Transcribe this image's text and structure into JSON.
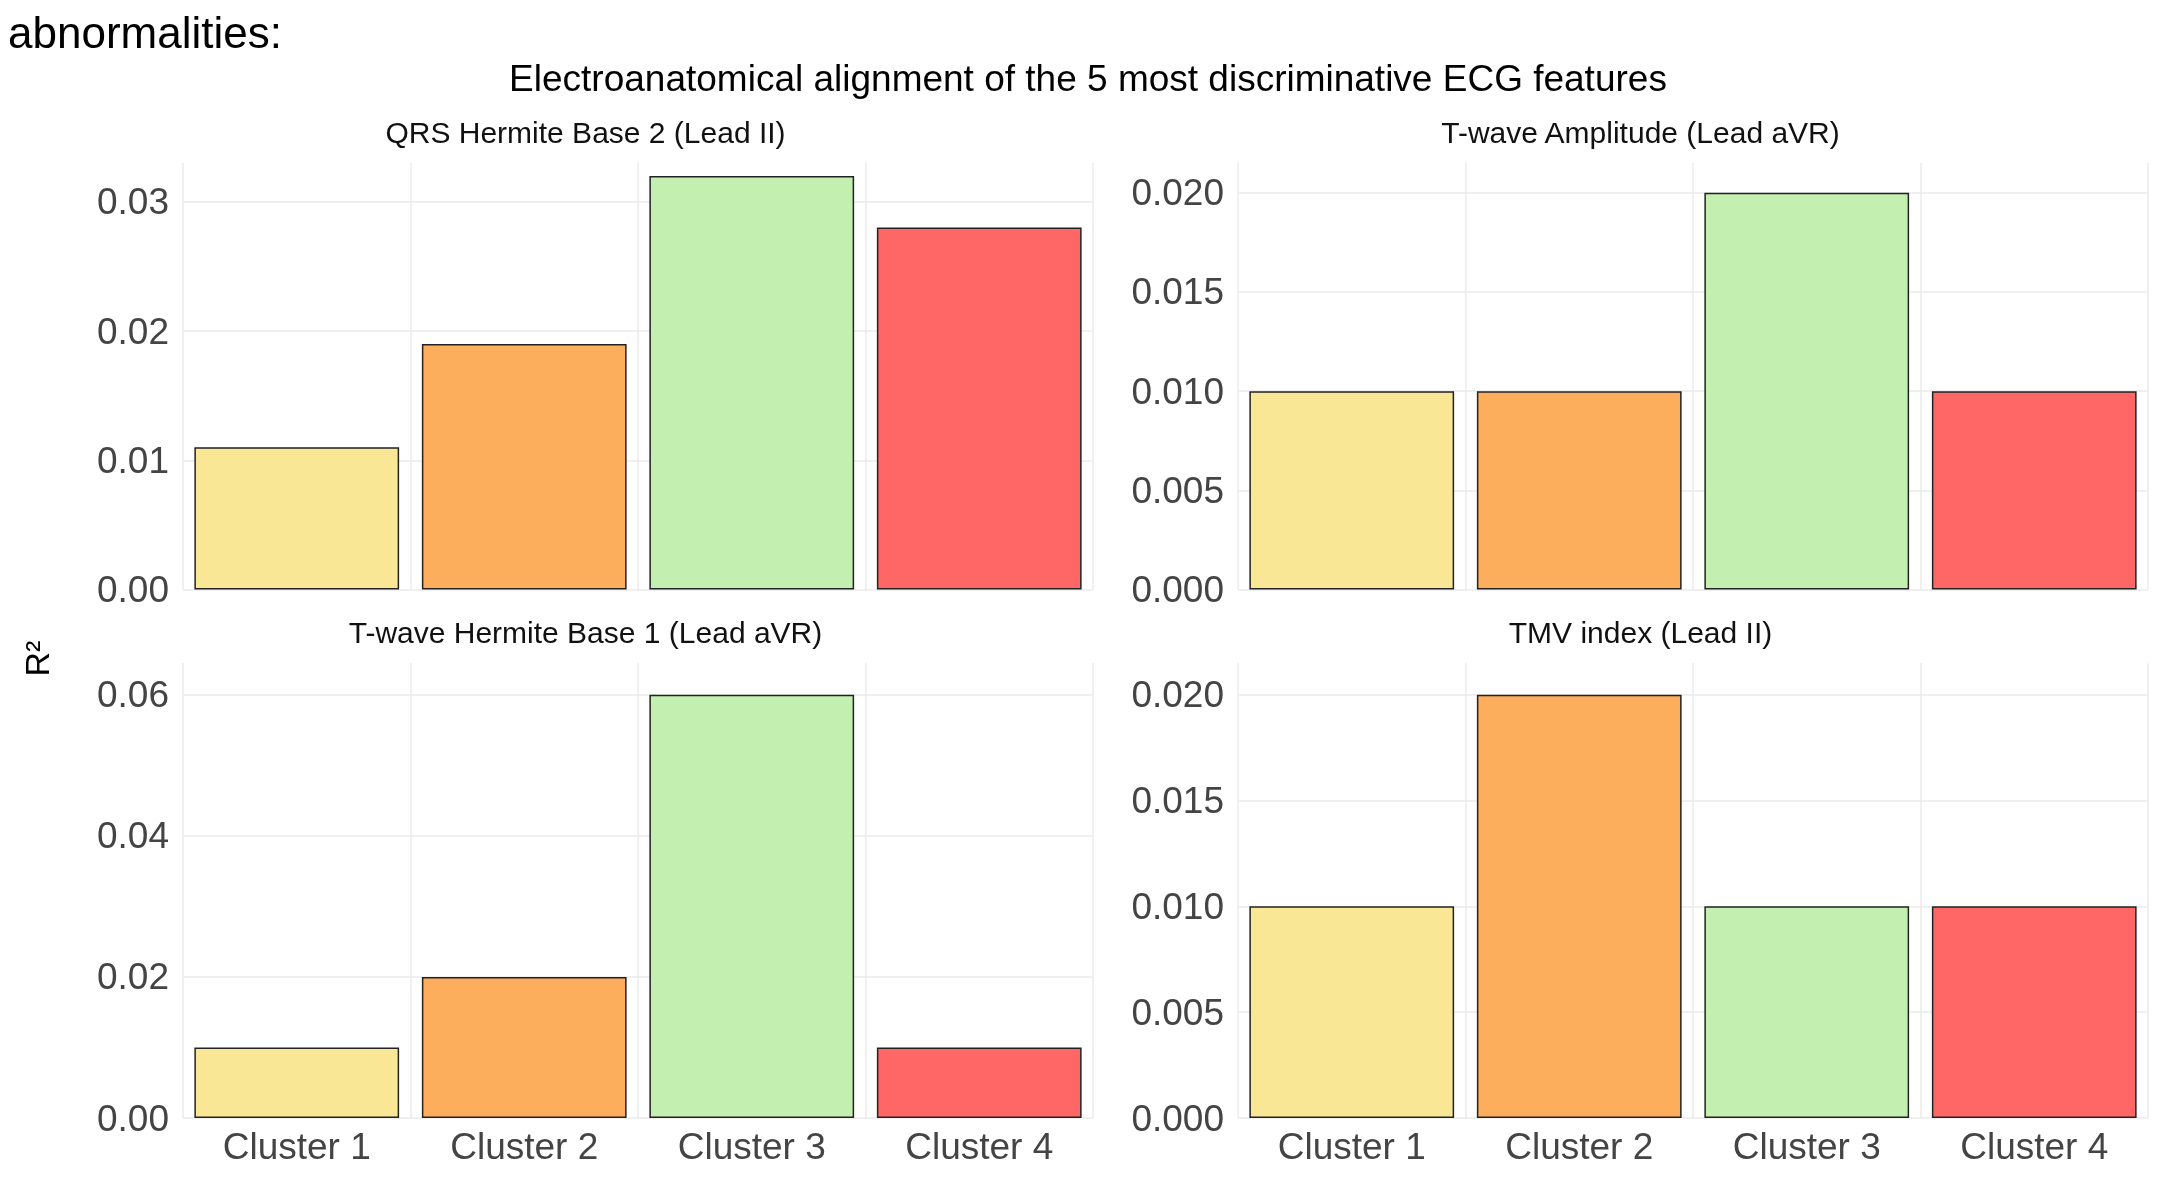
{
  "chart_data": [
    {
      "type": "bar",
      "title": "QRS Hermite Base 2 (Lead II)",
      "annotations": [
        "abnormalities:",
        "Electroanatomical alignment of the 5 most discriminative ECG features"
      ],
      "ylabel": "R²",
      "categories": [
        null,
        null,
        null,
        null
      ],
      "values": [
        0.011,
        0.019,
        0.032,
        0.028
      ],
      "colors": [
        "#f9e795",
        "#fdae5c",
        "#c3efb0",
        "#ff6666"
      ],
      "ylim": [
        0,
        0.033
      ],
      "yticks": [
        {
          "value": 0,
          "label": "0.00"
        },
        {
          "value": 0.01,
          "label": "0.01"
        },
        {
          "value": 0.02,
          "label": "0.02"
        },
        {
          "value": 0.03,
          "label": "0.03"
        }
      ],
      "grid": true,
      "tick_labels": "y"
    },
    {
      "type": "bar",
      "title": "T-wave Amplitude (Lead aVR)",
      "categories": [
        null,
        null,
        null,
        null
      ],
      "values": [
        0.01,
        0.01,
        0.02,
        0.01
      ],
      "colors": [
        "#f9e795",
        "#fdae5c",
        "#c3efb0",
        "#ff6666"
      ],
      "ylim": [
        0,
        0.0215
      ],
      "yticks": [
        {
          "value": 0,
          "label": "0.000"
        },
        {
          "value": 0.005,
          "label": "0.005"
        },
        {
          "value": 0.01,
          "label": "0.010"
        },
        {
          "value": 0.015,
          "label": "0.015"
        },
        {
          "value": 0.02,
          "label": "0.020"
        }
      ],
      "grid": true,
      "tick_labels": "y"
    },
    {
      "type": "bar",
      "title": "T-wave Hermite Base 1 (Lead aVR)",
      "categories": [
        "Cluster 1",
        "Cluster 2",
        "Cluster 3",
        "Cluster 4"
      ],
      "values": [
        0.01,
        0.02,
        0.06,
        0.01
      ],
      "colors": [
        "#f9e795",
        "#fdae5c",
        "#c3efb0",
        "#ff6666"
      ],
      "ylim": [
        0,
        0.0645
      ],
      "yticks": [
        {
          "value": 0,
          "label": "0.00"
        },
        {
          "value": 0.02,
          "label": "0.02"
        },
        {
          "value": 0.04,
          "label": "0.04"
        },
        {
          "value": 0.06,
          "label": "0.06"
        }
      ],
      "grid": true
    },
    {
      "type": "bar",
      "title": "TMV index (Lead II)",
      "categories": [
        "Cluster 1",
        "Cluster 2",
        "Cluster 3",
        "Cluster 4"
      ],
      "values": [
        0.01,
        0.02,
        0.01,
        0.01
      ],
      "colors": [
        "#f9e795",
        "#fdae5c",
        "#c3efb0",
        "#ff6666"
      ],
      "ylim": [
        0,
        0.0215
      ],
      "yticks": [
        {
          "value": 0,
          "label": "0.000"
        },
        {
          "value": 0.005,
          "label": "0.005"
        },
        {
          "value": 0.01,
          "label": "0.010"
        },
        {
          "value": 0.015,
          "label": "0.015"
        },
        {
          "value": 0.02,
          "label": "0.020"
        }
      ],
      "grid": true
    }
  ]
}
